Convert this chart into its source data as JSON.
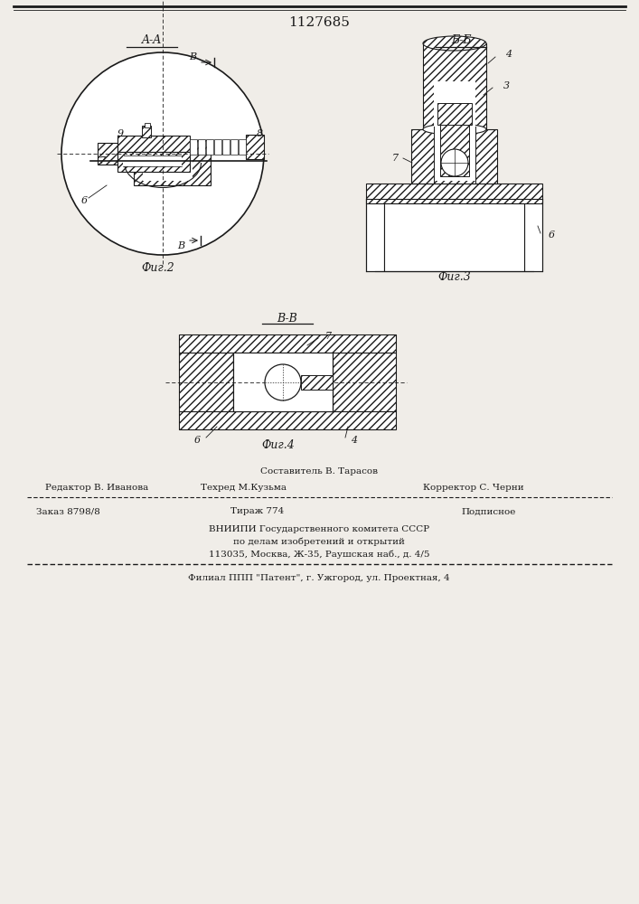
{
  "patent_number": "1127685",
  "bg_color": "#f0ede8",
  "line_color": "#1a1a1a",
  "fig2_label": "Фиг.2",
  "fig3_label": "Фиг.3",
  "fig4_label": "Фиг.4",
  "section_aa": "A-A",
  "section_bb": "Б-Б",
  "section_vv": "B-B",
  "footer_line0_center": "Составитель В. Тарасов",
  "footer_line1_left": "Редактор В. Иванова",
  "footer_line1_center": "Техред М.Кузьма",
  "footer_line1_right": "Корректор С. Черни",
  "footer_order": "Заказ 8798/8",
  "footer_tirazh": "Тираж 774",
  "footer_podpisnoe": "Подписное",
  "footer_vniip1": "ВНИИПИ Государственного комитета СССР",
  "footer_vniip2": "по делам изобретений и открытий",
  "footer_vniip3": "113035, Москва, Ж-35, Раушская наб., д. 4/5",
  "footer_filial": "Филиал ППП \"Патент\", г. Ужгород, ул. Проектная, 4"
}
